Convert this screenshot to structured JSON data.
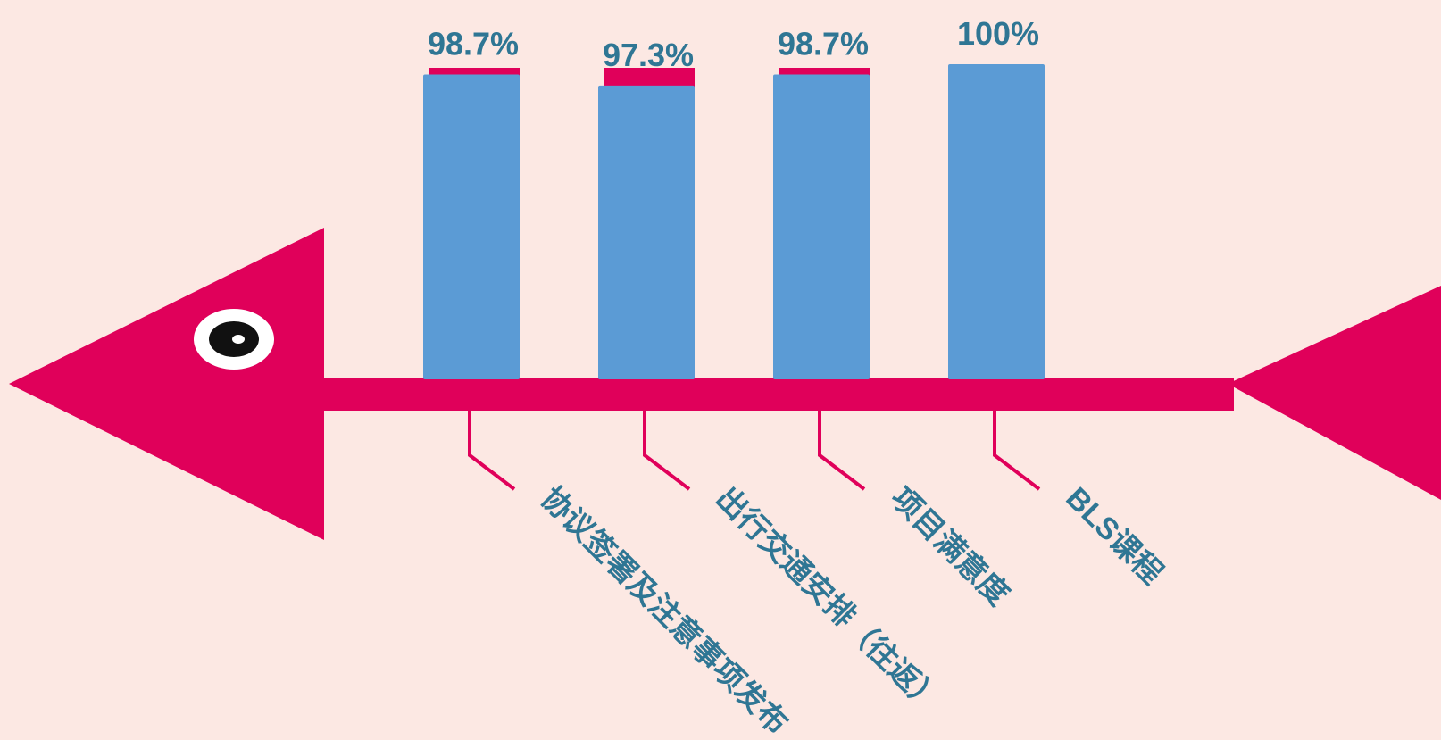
{
  "chart_data": {
    "type": "bar",
    "categories": [
      "协议签署及注意事项发布",
      "出行交通安排（往返）",
      "项目满意度",
      "BLS课程"
    ],
    "values": [
      98.7,
      97.3,
      98.7,
      100
    ],
    "value_labels": [
      "98.7%",
      "97.3%",
      "98.7%",
      "100%"
    ],
    "color": "#5b9bd5",
    "ylim": [
      60,
      100
    ]
  }
}
